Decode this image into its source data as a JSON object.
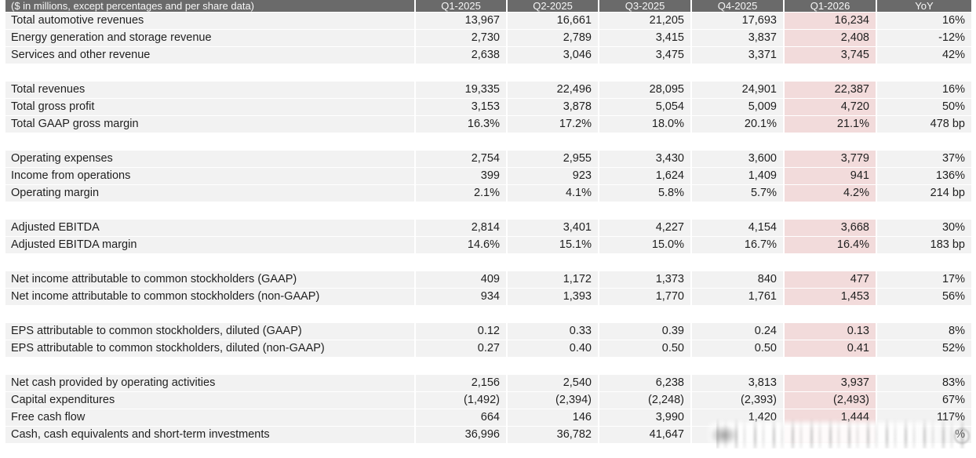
{
  "colors": {
    "header_bg": "#6a6a6a",
    "header_text": "#f7f7f7",
    "row_bg": "#f2f2f2",
    "highlight_bg": "#f2dbdb",
    "text": "#1f1f1f"
  },
  "highlight_column": "Q1-2026",
  "table": {
    "header": [
      "($ in millions, except percentages and per share data)",
      "Q1-2025",
      "Q2-2025",
      "Q3-2025",
      "Q4-2025",
      "Q1-2026",
      "YoY"
    ],
    "groups": [
      {
        "rows": [
          {
            "label": "Total automotive revenues",
            "values": [
              "13,967",
              "16,661",
              "21,205",
              "17,693",
              "16,234",
              "16%"
            ]
          },
          {
            "label": "Energy generation and storage revenue",
            "values": [
              "2,730",
              "2,789",
              "3,415",
              "3,837",
              "2,408",
              "-12%"
            ]
          },
          {
            "label": "Services and other revenue",
            "values": [
              "2,638",
              "3,046",
              "3,475",
              "3,371",
              "3,745",
              "42%"
            ]
          }
        ]
      },
      {
        "rows": [
          {
            "label": "Total revenues",
            "values": [
              "19,335",
              "22,496",
              "28,095",
              "24,901",
              "22,387",
              "16%"
            ]
          },
          {
            "label": "Total gross profit",
            "values": [
              "3,153",
              "3,878",
              "5,054",
              "5,009",
              "4,720",
              "50%"
            ]
          },
          {
            "label": "Total GAAP gross margin",
            "values": [
              "16.3%",
              "17.2%",
              "18.0%",
              "20.1%",
              "21.1%",
              "478 bp"
            ]
          }
        ]
      },
      {
        "rows": [
          {
            "label": "Operating expenses",
            "values": [
              "2,754",
              "2,955",
              "3,430",
              "3,600",
              "3,779",
              "37%"
            ]
          },
          {
            "label": "Income from operations",
            "values": [
              "399",
              "923",
              "1,624",
              "1,409",
              "941",
              "136%"
            ]
          },
          {
            "label": "Operating margin",
            "values": [
              "2.1%",
              "4.1%",
              "5.8%",
              "5.7%",
              "4.2%",
              "214 bp"
            ]
          }
        ]
      },
      {
        "rows": [
          {
            "label": "Adjusted EBITDA",
            "values": [
              "2,814",
              "3,401",
              "4,227",
              "4,154",
              "3,668",
              "30%"
            ]
          },
          {
            "label": "Adjusted EBITDA margin",
            "values": [
              "14.6%",
              "15.1%",
              "15.0%",
              "16.7%",
              "16.4%",
              "183 bp"
            ]
          }
        ]
      },
      {
        "rows": [
          {
            "label": "Net income attributable to common stockholders (GAAP)",
            "values": [
              "409",
              "1,172",
              "1,373",
              "840",
              "477",
              "17%"
            ]
          },
          {
            "label": "Net income attributable to common stockholders (non-GAAP)",
            "values": [
              "934",
              "1,393",
              "1,770",
              "1,761",
              "1,453",
              "56%"
            ]
          }
        ]
      },
      {
        "rows": [
          {
            "label": "EPS attributable to common stockholders, diluted (GAAP)",
            "values": [
              "0.12",
              "0.33",
              "0.39",
              "0.24",
              "0.13",
              "8%"
            ]
          },
          {
            "label": "EPS attributable to common stockholders, diluted (non-GAAP)",
            "values": [
              "0.27",
              "0.40",
              "0.50",
              "0.50",
              "0.41",
              "52%"
            ]
          }
        ]
      },
      {
        "rows": [
          {
            "label": "Net cash provided by operating activities",
            "values": [
              "2,156",
              "2,540",
              "6,238",
              "3,813",
              "3,937",
              "83%"
            ]
          },
          {
            "label": "Capital expenditures",
            "values": [
              "(1,492)",
              "(2,394)",
              "(2,248)",
              "(2,393)",
              "(2,493)",
              "67%"
            ]
          },
          {
            "label": "Free cash flow",
            "values": [
              "664",
              "146",
              "3,990",
              "1,420",
              "1,444",
              "117%"
            ]
          },
          {
            "label": "Cash, cash equivalents and short-term investments",
            "values": [
              "36,996",
              "36,782",
              "41,647",
              "",
              "",
              "%"
            ]
          }
        ]
      }
    ]
  },
  "chart_data": {
    "type": "table",
    "columns": [
      "($ in millions, except percentages and per share data)",
      "Q1-2025",
      "Q2-2025",
      "Q3-2025",
      "Q4-2025",
      "Q1-2026",
      "YoY"
    ],
    "rows": [
      [
        "Total automotive revenues",
        "13,967",
        "16,661",
        "21,205",
        "17,693",
        "16,234",
        "16%"
      ],
      [
        "Energy generation and storage revenue",
        "2,730",
        "2,789",
        "3,415",
        "3,837",
        "2,408",
        "-12%"
      ],
      [
        "Services and other revenue",
        "2,638",
        "3,046",
        "3,475",
        "3,371",
        "3,745",
        "42%"
      ],
      [
        "Total revenues",
        "19,335",
        "22,496",
        "28,095",
        "24,901",
        "22,387",
        "16%"
      ],
      [
        "Total gross profit",
        "3,153",
        "3,878",
        "5,054",
        "5,009",
        "4,720",
        "50%"
      ],
      [
        "Total GAAP gross margin",
        "16.3%",
        "17.2%",
        "18.0%",
        "20.1%",
        "21.1%",
        "478 bp"
      ],
      [
        "Operating expenses",
        "2,754",
        "2,955",
        "3,430",
        "3,600",
        "3,779",
        "37%"
      ],
      [
        "Income from operations",
        "399",
        "923",
        "1,624",
        "1,409",
        "941",
        "136%"
      ],
      [
        "Operating margin",
        "2.1%",
        "4.1%",
        "5.8%",
        "5.7%",
        "4.2%",
        "214 bp"
      ],
      [
        "Adjusted EBITDA",
        "2,814",
        "3,401",
        "4,227",
        "4,154",
        "3,668",
        "30%"
      ],
      [
        "Adjusted EBITDA margin",
        "14.6%",
        "15.1%",
        "15.0%",
        "16.7%",
        "16.4%",
        "183 bp"
      ],
      [
        "Net income attributable to common stockholders (GAAP)",
        "409",
        "1,172",
        "1,373",
        "840",
        "477",
        "17%"
      ],
      [
        "Net income attributable to common stockholders (non-GAAP)",
        "934",
        "1,393",
        "1,770",
        "1,761",
        "1,453",
        "56%"
      ],
      [
        "EPS attributable to common stockholders, diluted (GAAP)",
        "0.12",
        "0.33",
        "0.39",
        "0.24",
        "0.13",
        "8%"
      ],
      [
        "EPS attributable to common stockholders, diluted (non-GAAP)",
        "0.27",
        "0.40",
        "0.50",
        "0.50",
        "0.41",
        "52%"
      ],
      [
        "Net cash provided by operating activities",
        "2,156",
        "2,540",
        "6,238",
        "3,813",
        "3,937",
        "83%"
      ],
      [
        "Capital expenditures",
        "(1,492)",
        "(2,394)",
        "(2,248)",
        "(2,393)",
        "(2,493)",
        "67%"
      ],
      [
        "Free cash flow",
        "664",
        "146",
        "3,990",
        "1,420",
        "1,444",
        "117%"
      ],
      [
        "Cash, cash equivalents and short-term investments",
        "36,996",
        "36,782",
        "41,647",
        "",
        "",
        "%"
      ]
    ]
  }
}
